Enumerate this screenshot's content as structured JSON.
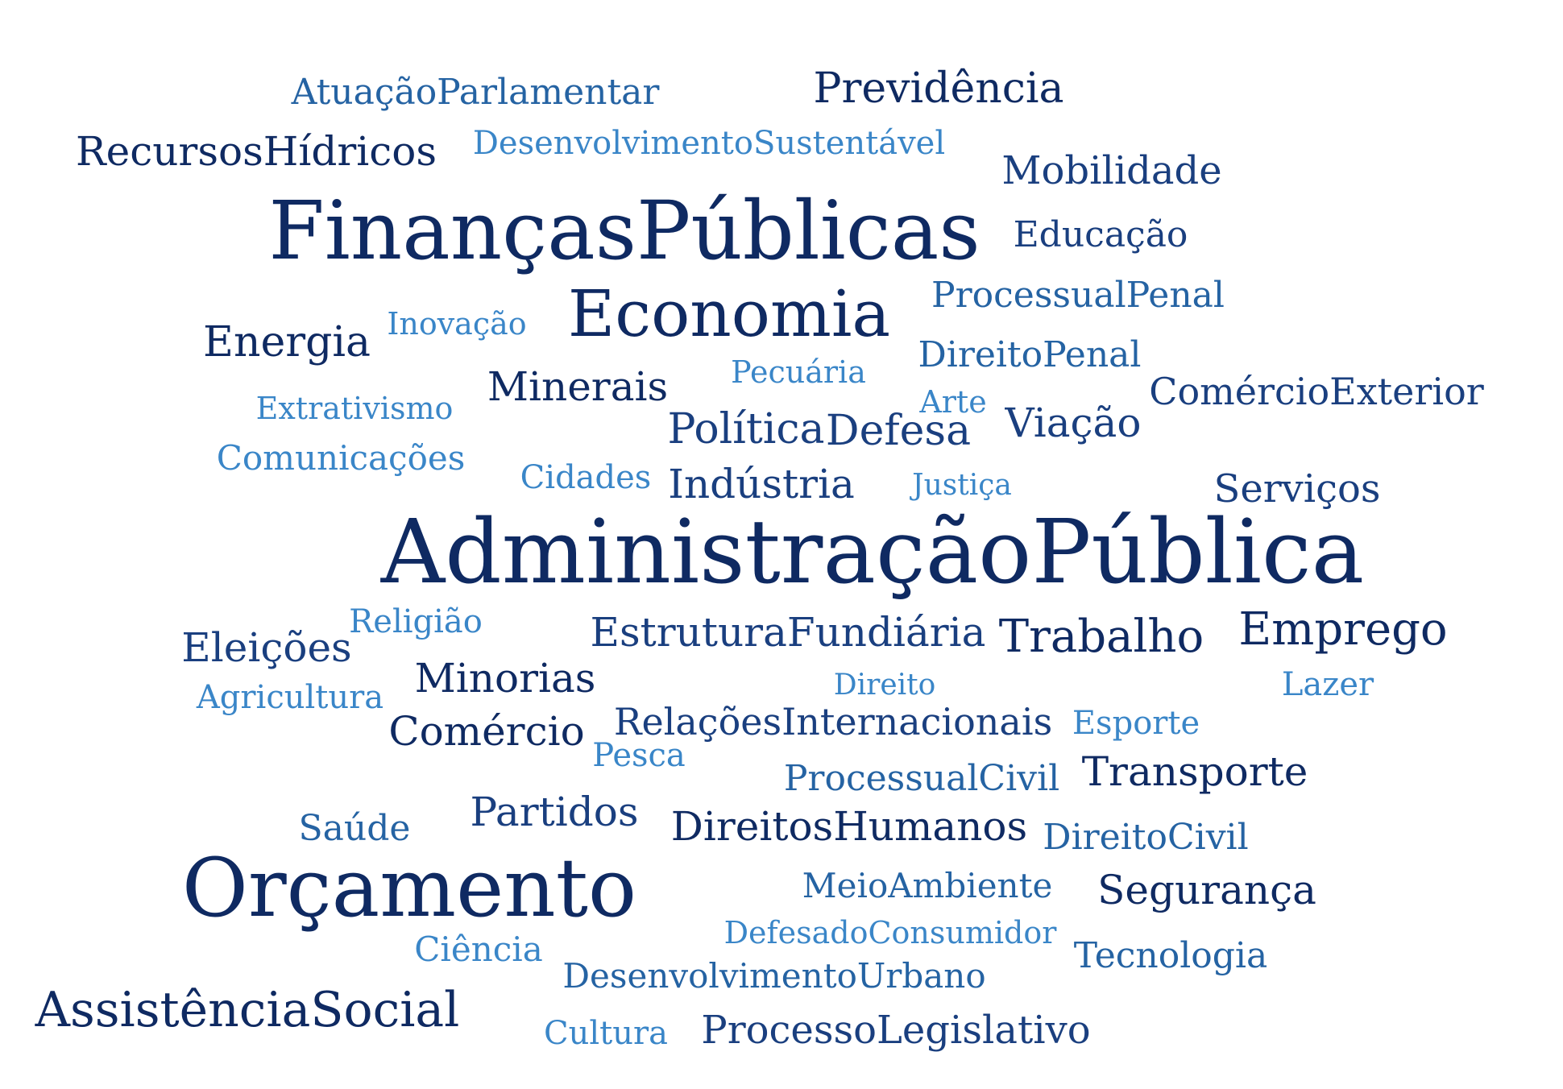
{
  "colors": {
    "tier1": "#0f2a62",
    "tier2": "#1a3f7f",
    "tier3": "#2563a3",
    "tier4": "#3a86c8"
  },
  "words": [
    {
      "text": "AtuaçãoParlamentar",
      "tier": "tier3"
    },
    {
      "text": "Previdência",
      "tier": "tier1"
    },
    {
      "text": "RecursosHídricos",
      "tier": "tier1"
    },
    {
      "text": "DesenvolvimentoSustentável",
      "tier": "tier4"
    },
    {
      "text": "Mobilidade",
      "tier": "tier2"
    },
    {
      "text": "FinançasPúblicas",
      "tier": "tier1"
    },
    {
      "text": "Educação",
      "tier": "tier2"
    },
    {
      "text": "ProcessualPenal",
      "tier": "tier3"
    },
    {
      "text": "Economia",
      "tier": "tier1"
    },
    {
      "text": "Energia",
      "tier": "tier1"
    },
    {
      "text": "Inovação",
      "tier": "tier4"
    },
    {
      "text": "DireitoPenal",
      "tier": "tier3"
    },
    {
      "text": "Pecuária",
      "tier": "tier4"
    },
    {
      "text": "Minerais",
      "tier": "tier1"
    },
    {
      "text": "ComércioExterior",
      "tier": "tier2"
    },
    {
      "text": "Extrativismo",
      "tier": "tier4"
    },
    {
      "text": "Arte",
      "tier": "tier4"
    },
    {
      "text": "Política",
      "tier": "tier2"
    },
    {
      "text": "Defesa",
      "tier": "tier2"
    },
    {
      "text": "Viação",
      "tier": "tier2"
    },
    {
      "text": "Comunicações",
      "tier": "tier4"
    },
    {
      "text": "Cidades",
      "tier": "tier4"
    },
    {
      "text": "Indústria",
      "tier": "tier2"
    },
    {
      "text": "Justiça",
      "tier": "tier4"
    },
    {
      "text": "Serviços",
      "tier": "tier2"
    },
    {
      "text": "AdministraçãoPública",
      "tier": "tier1"
    },
    {
      "text": "Religião",
      "tier": "tier4"
    },
    {
      "text": "Eleições",
      "tier": "tier2"
    },
    {
      "text": "EstruturaFundiária",
      "tier": "tier2"
    },
    {
      "text": "Trabalho",
      "tier": "tier1"
    },
    {
      "text": "Emprego",
      "tier": "tier1"
    },
    {
      "text": "Minorias",
      "tier": "tier1"
    },
    {
      "text": "Agricultura",
      "tier": "tier4"
    },
    {
      "text": "Direito",
      "tier": "tier4"
    },
    {
      "text": "Lazer",
      "tier": "tier4"
    },
    {
      "text": "Comércio",
      "tier": "tier1"
    },
    {
      "text": "RelaçõesInternacionais",
      "tier": "tier2"
    },
    {
      "text": "Esporte",
      "tier": "tier4"
    },
    {
      "text": "Pesca",
      "tier": "tier4"
    },
    {
      "text": "ProcessualCivil",
      "tier": "tier3"
    },
    {
      "text": "Transporte",
      "tier": "tier1"
    },
    {
      "text": "Saúde",
      "tier": "tier3"
    },
    {
      "text": "Partidos",
      "tier": "tier2"
    },
    {
      "text": "DireitosHumanos",
      "tier": "tier1"
    },
    {
      "text": "DireitoCivil",
      "tier": "tier3"
    },
    {
      "text": "Orçamento",
      "tier": "tier1"
    },
    {
      "text": "MeioAmbiente",
      "tier": "tier3"
    },
    {
      "text": "Segurança",
      "tier": "tier1"
    },
    {
      "text": "DefesadoConsumidor",
      "tier": "tier4"
    },
    {
      "text": "Ciência",
      "tier": "tier4"
    },
    {
      "text": "Tecnologia",
      "tier": "tier3"
    },
    {
      "text": "DesenvolvimentoUrbano",
      "tier": "tier3"
    },
    {
      "text": "AssistênciaSocial",
      "tier": "tier1"
    },
    {
      "text": "Cultura",
      "tier": "tier4"
    },
    {
      "text": "ProcessoLegislativo",
      "tier": "tier2"
    }
  ]
}
